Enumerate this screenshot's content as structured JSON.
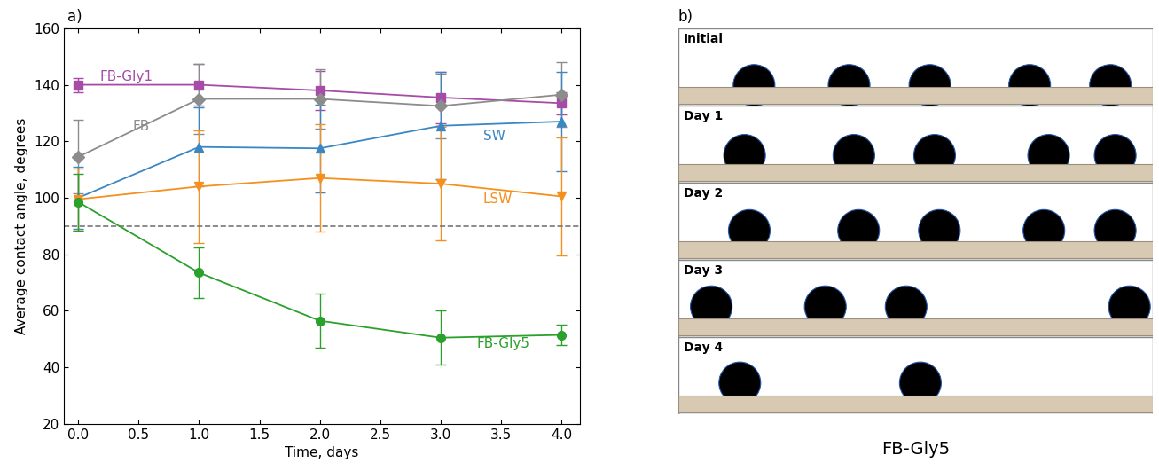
{
  "chart_data": {
    "type": "line",
    "panel_label": "a)",
    "x_label": "Time, days",
    "y_label": "Average contact angle, degrees",
    "xlim": [
      -0.12,
      4.15
    ],
    "xticks": [
      {
        "value": 0,
        "label": "0.0"
      },
      {
        "value": 0.5,
        "label": "0.5"
      },
      {
        "value": 1,
        "label": "1.0"
      },
      {
        "value": 1.5,
        "label": "1.5"
      },
      {
        "value": 2,
        "label": "2.0"
      },
      {
        "value": 2.5,
        "label": "2.5"
      },
      {
        "value": 3,
        "label": "3.0"
      },
      {
        "value": 3.5,
        "label": "3.5"
      },
      {
        "value": 4,
        "label": "4.0"
      }
    ],
    "ylim": [
      20,
      160
    ],
    "yticks": [
      20,
      40,
      60,
      80,
      100,
      120,
      140,
      160
    ],
    "reference_line": 90,
    "x": [
      0,
      1,
      2,
      3,
      4
    ],
    "series": [
      {
        "name": "FB-Gly1",
        "color": "#a64ca6",
        "marker": "square",
        "values": [
          140,
          140,
          138,
          135.5,
          133.5
        ],
        "errors": [
          2.5,
          7.5,
          7,
          9,
          4
        ]
      },
      {
        "name": "FB",
        "color": "#8c8c8c",
        "marker": "diamond",
        "values": [
          114.5,
          135,
          135,
          132.5,
          136.5
        ],
        "errors": [
          13,
          12.5,
          10.5,
          11.5,
          11.5
        ]
      },
      {
        "name": "SW",
        "color": "#3a87c4",
        "marker": "triangle_up",
        "values": [
          100,
          118,
          117.5,
          125.5,
          127
        ],
        "errors": [
          11,
          14,
          15.5,
          19,
          17.5
        ]
      },
      {
        "name": "LSW",
        "color": "#f5901e",
        "marker": "triangle_down",
        "values": [
          99.5,
          104,
          107,
          105,
          100.5
        ],
        "errors": [
          11,
          20,
          19,
          20,
          21
        ]
      },
      {
        "name": "FB-Gly5",
        "color": "#2ca02c",
        "marker": "circle",
        "values": [
          98.5,
          73.5,
          56.5,
          50.5,
          51.5
        ],
        "errors": [
          10,
          9,
          9.5,
          9.5,
          3.5
        ]
      }
    ]
  },
  "image_panel": {
    "panel_label": "b)",
    "rows": [
      "Initial",
      "Day 1",
      "Day 2",
      "Day 3",
      "Day 4"
    ],
    "caption": "FB-Gly5"
  }
}
